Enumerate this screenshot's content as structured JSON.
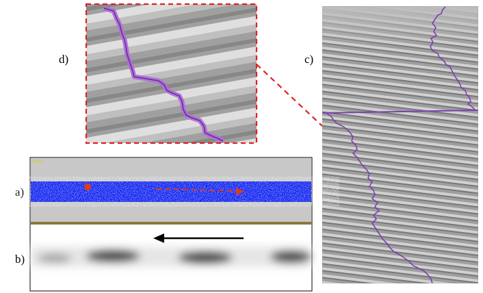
{
  "panels": {
    "a": {
      "label": "a)",
      "corner_tag": "2000"
    },
    "b": {
      "label": "b)"
    },
    "c": {
      "label": "c)"
    },
    "d": {
      "label": "d)"
    }
  },
  "colors": {
    "zoom_box": "#e02020",
    "trace": "#7b3fb0",
    "trace_light": "#b070d8",
    "particle_band": "#0a1ef0",
    "marker": "#e03a1a",
    "panel_gray": "#c8c8c8",
    "divider": "#8a7a3a"
  },
  "icons": {
    "flow_arrow_dashed": "dashed-arrow-right-icon",
    "flow_arrow_solid": "arrow-left-icon"
  }
}
